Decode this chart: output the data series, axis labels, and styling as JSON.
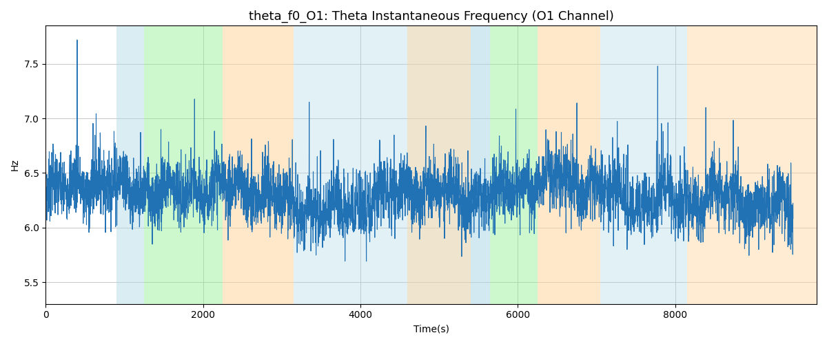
{
  "title": "theta_f0_O1: Theta Instantaneous Frequency (O1 Channel)",
  "xlabel": "Time(s)",
  "ylabel": "Hz",
  "xlim": [
    0,
    9800
  ],
  "ylim": [
    5.3,
    7.85
  ],
  "yticks": [
    5.5,
    6.0,
    6.5,
    7.0,
    7.5
  ],
  "xticks": [
    0,
    2000,
    4000,
    6000,
    8000
  ],
  "line_color": "#2171b5",
  "line_width": 0.8,
  "grid_color": "#b0b0b0",
  "grid_linewidth": 0.5,
  "background_regions": [
    {
      "xmin": 900,
      "xmax": 1250,
      "color": "#add8e6",
      "alpha": 0.45
    },
    {
      "xmin": 1250,
      "xmax": 2250,
      "color": "#90ee90",
      "alpha": 0.45
    },
    {
      "xmin": 2250,
      "xmax": 3150,
      "color": "#ffd59e",
      "alpha": 0.55
    },
    {
      "xmin": 3150,
      "xmax": 5400,
      "color": "#add8e6",
      "alpha": 0.35
    },
    {
      "xmin": 4600,
      "xmax": 5400,
      "color": "#ffd59e",
      "alpha": 0.45
    },
    {
      "xmin": 5400,
      "xmax": 5650,
      "color": "#add8e6",
      "alpha": 0.55
    },
    {
      "xmin": 5650,
      "xmax": 6250,
      "color": "#90ee90",
      "alpha": 0.45
    },
    {
      "xmin": 6250,
      "xmax": 7050,
      "color": "#ffd59e",
      "alpha": 0.55
    },
    {
      "xmin": 7050,
      "xmax": 8150,
      "color": "#add8e6",
      "alpha": 0.35
    },
    {
      "xmin": 8150,
      "xmax": 9800,
      "color": "#ffd59e",
      "alpha": 0.45
    }
  ],
  "figsize": [
    12.0,
    5.0
  ],
  "dpi": 100,
  "title_fontsize": 13
}
